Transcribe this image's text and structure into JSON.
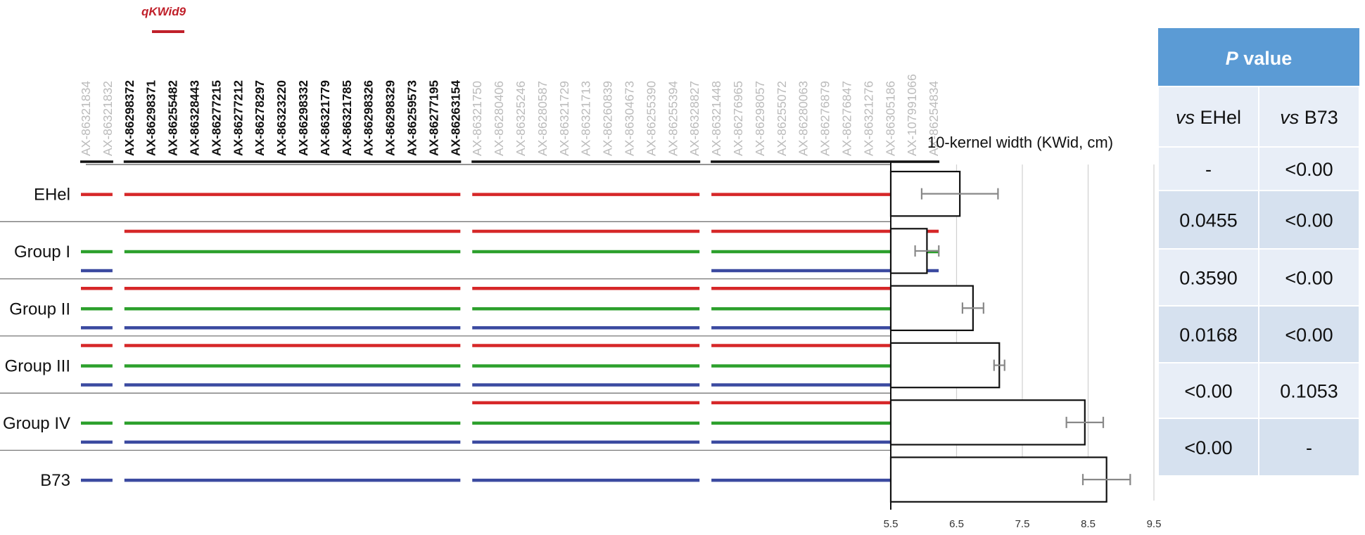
{
  "qtl_label": "qKWid9",
  "markers": [
    {
      "name": "AX-86321834",
      "bold": false
    },
    {
      "name": "AX-86321832",
      "bold": false
    },
    {
      "name": "AX-86298372",
      "bold": true
    },
    {
      "name": "AX-86298371",
      "bold": true
    },
    {
      "name": "AX-86255482",
      "bold": true
    },
    {
      "name": "AX-86328443",
      "bold": true
    },
    {
      "name": "AX-86277215",
      "bold": true
    },
    {
      "name": "AX-86277212",
      "bold": true
    },
    {
      "name": "AX-86278297",
      "bold": true
    },
    {
      "name": "AX-86323220",
      "bold": true
    },
    {
      "name": "AX-86298332",
      "bold": true
    },
    {
      "name": "AX-86321779",
      "bold": true
    },
    {
      "name": "AX-86321785",
      "bold": true
    },
    {
      "name": "AX-86298326",
      "bold": true
    },
    {
      "name": "AX-86298329",
      "bold": true
    },
    {
      "name": "AX-86259573",
      "bold": true
    },
    {
      "name": "AX-86277195",
      "bold": true
    },
    {
      "name": "AX-86263154",
      "bold": true
    },
    {
      "name": "AX-86321750",
      "bold": false
    },
    {
      "name": "AX-86280406",
      "bold": false
    },
    {
      "name": "AX-86325246",
      "bold": false
    },
    {
      "name": "AX-86280587",
      "bold": false
    },
    {
      "name": "AX-86321729",
      "bold": false
    },
    {
      "name": "AX-86321713",
      "bold": false
    },
    {
      "name": "AX-86260839",
      "bold": false
    },
    {
      "name": "AX-86304673",
      "bold": false
    },
    {
      "name": "AX-86255390",
      "bold": false
    },
    {
      "name": "AX-86255394",
      "bold": false
    },
    {
      "name": "AX-86328827",
      "bold": false
    },
    {
      "name": "AX-86321448",
      "bold": false
    },
    {
      "name": "AX-86276965",
      "bold": false
    },
    {
      "name": "AX-86298057",
      "bold": false
    },
    {
      "name": "AX-86255072",
      "bold": false
    },
    {
      "name": "AX-86280063",
      "bold": false
    },
    {
      "name": "AX-86276879",
      "bold": false
    },
    {
      "name": "AX-86276847",
      "bold": false
    },
    {
      "name": "AX-86321276",
      "bold": false
    },
    {
      "name": "AX-86305186",
      "bold": false
    },
    {
      "name": "AX-107991066",
      "bold": false
    },
    {
      "name": "AX-86254834",
      "bold": false
    }
  ],
  "marker_bins": [
    [
      0,
      1
    ],
    [
      2,
      17
    ],
    [
      18,
      28
    ],
    [
      29,
      39
    ]
  ],
  "colors": {
    "red": "#d62728",
    "green": "#2ca02c",
    "blue": "#3b4aa0",
    "header": "#5b9bd5",
    "cell_dark": "#d6e1ef",
    "cell_light": "#e8eef7",
    "marker_grey": "#bbbbbb"
  },
  "groups": [
    {
      "label": "EHel",
      "tracks": [
        {
          "color": "red",
          "bins": [
            0,
            1,
            2,
            3
          ]
        }
      ]
    },
    {
      "label": "Group I",
      "tracks": [
        {
          "color": "red",
          "bins": [
            1,
            2,
            3
          ]
        },
        {
          "color": "green",
          "bins": [
            0,
            1,
            2,
            3
          ]
        },
        {
          "color": "blue",
          "bins": [
            0,
            3
          ]
        }
      ]
    },
    {
      "label": "Group II",
      "tracks": [
        {
          "color": "red",
          "bins": [
            0,
            1,
            2,
            3
          ]
        },
        {
          "color": "green",
          "bins": [
            0,
            1,
            2,
            3
          ]
        },
        {
          "color": "blue",
          "bins": [
            0,
            1,
            2,
            3
          ]
        }
      ]
    },
    {
      "label": "Group III",
      "tracks": [
        {
          "color": "red",
          "bins": [
            0,
            1,
            2,
            3
          ]
        },
        {
          "color": "green",
          "bins": [
            0,
            1,
            2,
            3
          ]
        },
        {
          "color": "blue",
          "bins": [
            0,
            1,
            2,
            3
          ]
        }
      ]
    },
    {
      "label": "Group IV",
      "tracks": [
        {
          "color": "red",
          "bins": [
            2,
            3
          ]
        },
        {
          "color": "green",
          "bins": [
            0,
            1,
            2,
            3
          ]
        },
        {
          "color": "blue",
          "bins": [
            0,
            1,
            2,
            3
          ]
        }
      ]
    },
    {
      "label": "B73",
      "tracks": [
        {
          "color": "blue",
          "bins": [
            0,
            1,
            2,
            3
          ]
        }
      ]
    }
  ],
  "chart_data": {
    "type": "bar",
    "orientation": "horizontal",
    "title": "10-kernel width (KWid, cm)",
    "categories": [
      "EHel",
      "Group I",
      "Group II",
      "Group III",
      "Group IV",
      "B73"
    ],
    "values": [
      6.55,
      6.05,
      6.75,
      7.15,
      8.45,
      8.78
    ],
    "errors": [
      0.58,
      0.18,
      0.16,
      0.08,
      0.28,
      0.36
    ],
    "xlim": [
      5.5,
      9.5
    ],
    "xticks": [
      "5.5",
      "6.5",
      "7.5",
      "8.5",
      "9.5"
    ],
    "grid": true
  },
  "table": {
    "header": "P value",
    "header_italic": "P",
    "header_rest": " value",
    "col_headers": [
      {
        "italic": "vs",
        "rest": " EHel"
      },
      {
        "italic": "vs",
        "rest": " B73"
      }
    ],
    "rows": [
      [
        "-",
        "<0.00"
      ],
      [
        "0.0455",
        "<0.00"
      ],
      [
        "0.3590",
        "<0.00"
      ],
      [
        "0.0168",
        "<0.00"
      ],
      [
        "<0.00",
        "0.1053"
      ],
      [
        "<0.00",
        "-"
      ]
    ]
  }
}
